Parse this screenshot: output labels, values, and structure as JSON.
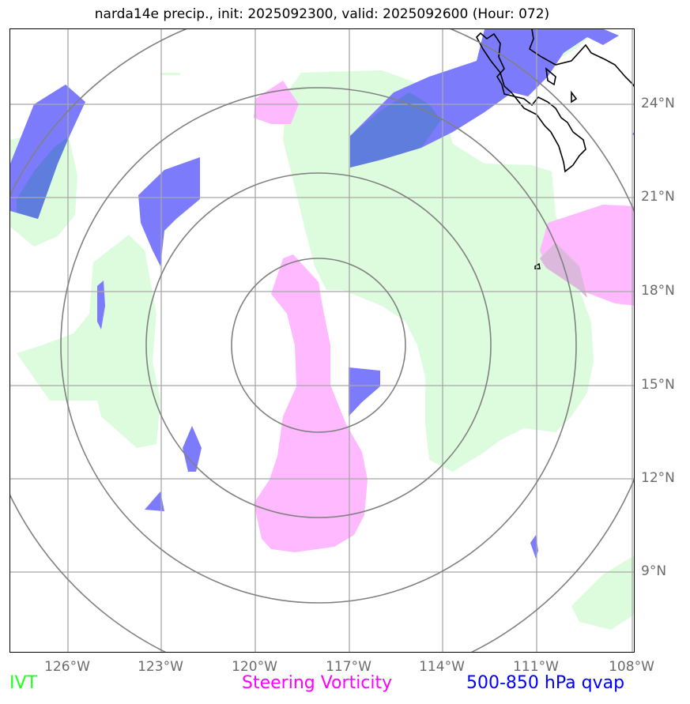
{
  "title": "narda14e precip., init: 2025092300, valid: 2025092600 (Hour: 072)",
  "x_ticks": [
    "126°W",
    "123°W",
    "120°W",
    "117°W",
    "114°W",
    "111°W",
    "108°W"
  ],
  "y_ticks": [
    "24°N",
    "21°N",
    "18°N",
    "15°N",
    "12°N",
    "9°N"
  ],
  "legend": [
    {
      "label": "IVT",
      "color": "#22ff22"
    },
    {
      "label": "Steering Vorticity",
      "color": "#ff00ff"
    },
    {
      "label": "500-850 hPa qvap",
      "color": "#0000ff"
    }
  ],
  "colors": {
    "ivt_fill": "#ddfcdd",
    "vorticity_fill": "#ffbaff",
    "qvap_fill": "#7b7bfc",
    "overlap_fill": "#5e7ddc",
    "grid": "#a8a8a8",
    "rings": "#808080",
    "coast": "#000000"
  }
}
